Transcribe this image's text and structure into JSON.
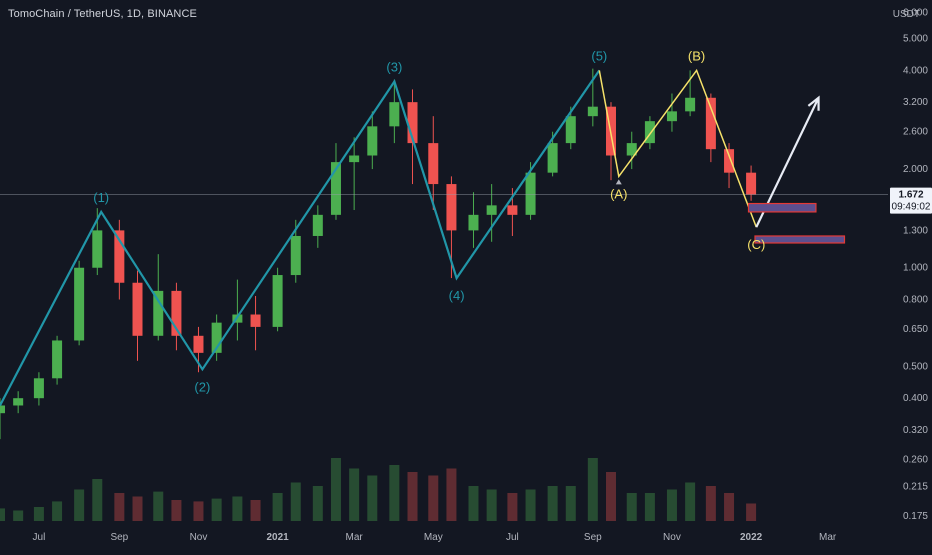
{
  "header": {
    "symbol_title": "TomoChain / TetherUS, 1D, BINANCE"
  },
  "colors": {
    "background": "#131722",
    "up_candle": "#4caf50",
    "down_candle": "#ef5350",
    "impulse_wave": "#2196a8",
    "corrective_wave": "#f5e16a",
    "forecast_arrow": "#e8ecf5",
    "target_box_fill": "#5c4f8f",
    "target_box_border": "#e53935",
    "axis_text": "#b2b5be",
    "price_line": "#9aa0ab"
  },
  "chart_data": {
    "type": "candlestick",
    "title": "TomoChain / TetherUS, 1D, BINANCE",
    "y_scale": "log",
    "y_unit": "USDT",
    "ylim": [
      0.17,
      6.2
    ],
    "y_ticks": [
      "6.000",
      "5.000",
      "4.000",
      "3.200",
      "2.600",
      "2.000",
      "1.300",
      "1.000",
      "0.800",
      "0.650",
      "0.500",
      "0.400",
      "0.320",
      "0.260",
      "0.215",
      "0.175"
    ],
    "x_ticks": [
      "Jul",
      "Sep",
      "Nov",
      "2021",
      "Mar",
      "May",
      "Jul",
      "Sep",
      "Nov",
      "2022",
      "Mar"
    ],
    "x_range": [
      "2020-06-01",
      "2022-04-15"
    ],
    "current_price": {
      "value": 1.672,
      "label": "1.672",
      "countdown": "09:49:02"
    },
    "elliott_waves": {
      "impulse": [
        {
          "label": "",
          "date": "2020-06-01",
          "price": 0.38
        },
        {
          "label": "(1)",
          "date": "2020-08-18",
          "price": 1.48
        },
        {
          "label": "(2)",
          "date": "2020-11-04",
          "price": 0.49
        },
        {
          "label": "(3)",
          "date": "2021-04-01",
          "price": 3.7
        },
        {
          "label": "(4)",
          "date": "2021-05-19",
          "price": 0.93
        },
        {
          "label": "(5)",
          "date": "2021-09-06",
          "price": 4.0
        }
      ],
      "corrective": [
        {
          "label": "(5)",
          "date": "2021-09-06",
          "price": 4.0
        },
        {
          "label": "(A)",
          "date": "2021-09-21",
          "price": 1.9
        },
        {
          "label": "(B)",
          "date": "2021-11-20",
          "price": 4.0
        },
        {
          "label": "(C)",
          "date": "2022-01-05",
          "price": 1.33
        }
      ],
      "forecast_arrow": [
        {
          "date": "2022-01-05",
          "price": 1.33
        },
        {
          "date": "2022-02-22",
          "price": 3.3
        }
      ],
      "target_zones": [
        {
          "date_start": "2021-12-30",
          "date_end": "2022-02-20",
          "price_low": 1.48,
          "price_high": 1.57
        },
        {
          "date_start": "2022-01-04",
          "date_end": "2022-03-14",
          "price_low": 1.19,
          "price_high": 1.25
        }
      ]
    },
    "candles": [
      {
        "date": "2020-06-01",
        "o": 0.36,
        "h": 0.4,
        "l": 0.3,
        "c": 0.38,
        "v": 0.18
      },
      {
        "date": "2020-06-15",
        "o": 0.38,
        "h": 0.42,
        "l": 0.36,
        "c": 0.4,
        "v": 0.15
      },
      {
        "date": "2020-07-01",
        "o": 0.4,
        "h": 0.48,
        "l": 0.38,
        "c": 0.46,
        "v": 0.2
      },
      {
        "date": "2020-07-15",
        "o": 0.46,
        "h": 0.62,
        "l": 0.44,
        "c": 0.6,
        "v": 0.28
      },
      {
        "date": "2020-08-01",
        "o": 0.6,
        "h": 1.05,
        "l": 0.58,
        "c": 1.0,
        "v": 0.45
      },
      {
        "date": "2020-08-15",
        "o": 1.0,
        "h": 1.52,
        "l": 0.95,
        "c": 1.3,
        "v": 0.6
      },
      {
        "date": "2020-09-01",
        "o": 1.3,
        "h": 1.4,
        "l": 0.8,
        "c": 0.9,
        "v": 0.4
      },
      {
        "date": "2020-09-15",
        "o": 0.9,
        "h": 0.98,
        "l": 0.52,
        "c": 0.62,
        "v": 0.35
      },
      {
        "date": "2020-10-01",
        "o": 0.62,
        "h": 1.1,
        "l": 0.6,
        "c": 0.85,
        "v": 0.42
      },
      {
        "date": "2020-10-15",
        "o": 0.85,
        "h": 0.9,
        "l": 0.56,
        "c": 0.62,
        "v": 0.3
      },
      {
        "date": "2020-11-01",
        "o": 0.62,
        "h": 0.66,
        "l": 0.48,
        "c": 0.55,
        "v": 0.28
      },
      {
        "date": "2020-11-15",
        "o": 0.55,
        "h": 0.72,
        "l": 0.52,
        "c": 0.68,
        "v": 0.32
      },
      {
        "date": "2020-12-01",
        "o": 0.68,
        "h": 0.92,
        "l": 0.6,
        "c": 0.72,
        "v": 0.35
      },
      {
        "date": "2020-12-15",
        "o": 0.72,
        "h": 0.82,
        "l": 0.56,
        "c": 0.66,
        "v": 0.3
      },
      {
        "date": "2021-01-01",
        "o": 0.66,
        "h": 1.0,
        "l": 0.64,
        "c": 0.95,
        "v": 0.4
      },
      {
        "date": "2021-01-15",
        "o": 0.95,
        "h": 1.4,
        "l": 0.9,
        "c": 1.25,
        "v": 0.55
      },
      {
        "date": "2021-02-01",
        "o": 1.25,
        "h": 1.55,
        "l": 1.15,
        "c": 1.45,
        "v": 0.5
      },
      {
        "date": "2021-02-15",
        "o": 1.45,
        "h": 2.4,
        "l": 1.4,
        "c": 2.1,
        "v": 0.9
      },
      {
        "date": "2021-03-01",
        "o": 2.1,
        "h": 2.5,
        "l": 1.5,
        "c": 2.2,
        "v": 0.75
      },
      {
        "date": "2021-03-15",
        "o": 2.2,
        "h": 3.0,
        "l": 2.0,
        "c": 2.7,
        "v": 0.65
      },
      {
        "date": "2021-04-01",
        "o": 2.7,
        "h": 3.75,
        "l": 2.4,
        "c": 3.2,
        "v": 0.8
      },
      {
        "date": "2021-04-15",
        "o": 3.2,
        "h": 3.5,
        "l": 1.8,
        "c": 2.4,
        "v": 0.7
      },
      {
        "date": "2021-05-01",
        "o": 2.4,
        "h": 2.9,
        "l": 1.5,
        "c": 1.8,
        "v": 0.65
      },
      {
        "date": "2021-05-15",
        "o": 1.8,
        "h": 1.9,
        "l": 0.93,
        "c": 1.3,
        "v": 0.75
      },
      {
        "date": "2021-06-01",
        "o": 1.3,
        "h": 1.7,
        "l": 1.15,
        "c": 1.45,
        "v": 0.5
      },
      {
        "date": "2021-06-15",
        "o": 1.45,
        "h": 1.8,
        "l": 1.2,
        "c": 1.55,
        "v": 0.45
      },
      {
        "date": "2021-07-01",
        "o": 1.55,
        "h": 1.75,
        "l": 1.25,
        "c": 1.45,
        "v": 0.4
      },
      {
        "date": "2021-07-15",
        "o": 1.45,
        "h": 2.1,
        "l": 1.4,
        "c": 1.95,
        "v": 0.45
      },
      {
        "date": "2021-08-01",
        "o": 1.95,
        "h": 2.6,
        "l": 1.9,
        "c": 2.4,
        "v": 0.5
      },
      {
        "date": "2021-08-15",
        "o": 2.4,
        "h": 3.1,
        "l": 2.3,
        "c": 2.9,
        "v": 0.5
      },
      {
        "date": "2021-09-01",
        "o": 2.9,
        "h": 4.05,
        "l": 2.7,
        "c": 3.1,
        "v": 0.9
      },
      {
        "date": "2021-09-15",
        "o": 3.1,
        "h": 3.2,
        "l": 1.85,
        "c": 2.2,
        "v": 0.7
      },
      {
        "date": "2021-10-01",
        "o": 2.2,
        "h": 2.6,
        "l": 2.0,
        "c": 2.4,
        "v": 0.4
      },
      {
        "date": "2021-10-15",
        "o": 2.4,
        "h": 2.9,
        "l": 2.3,
        "c": 2.8,
        "v": 0.4
      },
      {
        "date": "2021-11-01",
        "o": 2.8,
        "h": 3.4,
        "l": 2.6,
        "c": 3.0,
        "v": 0.45
      },
      {
        "date": "2021-11-15",
        "o": 3.0,
        "h": 4.0,
        "l": 2.9,
        "c": 3.3,
        "v": 0.55
      },
      {
        "date": "2021-12-01",
        "o": 3.3,
        "h": 3.4,
        "l": 2.1,
        "c": 2.3,
        "v": 0.5
      },
      {
        "date": "2021-12-15",
        "o": 2.3,
        "h": 2.4,
        "l": 1.75,
        "c": 1.95,
        "v": 0.4
      },
      {
        "date": "2022-01-01",
        "o": 1.95,
        "h": 2.05,
        "l": 1.6,
        "c": 1.672,
        "v": 0.25
      }
    ]
  }
}
